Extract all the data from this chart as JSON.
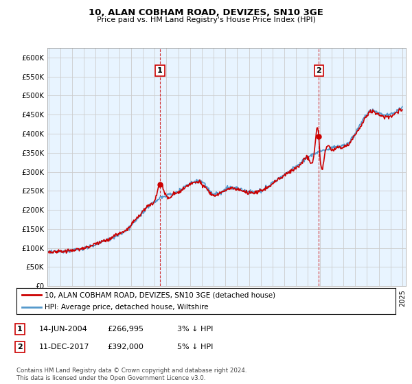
{
  "title": "10, ALAN COBHAM ROAD, DEVIZES, SN10 3GE",
  "subtitle": "Price paid vs. HM Land Registry's House Price Index (HPI)",
  "ylabel_ticks": [
    "£0",
    "£50K",
    "£100K",
    "£150K",
    "£200K",
    "£250K",
    "£300K",
    "£350K",
    "£400K",
    "£450K",
    "£500K",
    "£550K",
    "£600K"
  ],
  "ytick_values": [
    0,
    50000,
    100000,
    150000,
    200000,
    250000,
    300000,
    350000,
    400000,
    450000,
    500000,
    550000,
    600000
  ],
  "ylim": [
    0,
    625000
  ],
  "xlim_start": 1994.9,
  "xlim_end": 2025.3,
  "sale1_x": 2004.45,
  "sale1_y": 266995,
  "sale1_label": "1",
  "sale2_x": 2017.92,
  "sale2_y": 392000,
  "sale2_label": "2",
  "line_color_red": "#cc0000",
  "line_color_blue": "#5599cc",
  "fill_color_blue": "#ddeeff",
  "grid_color": "#cccccc",
  "background_color": "#ffffff",
  "legend_entry1": "10, ALAN COBHAM ROAD, DEVIZES, SN10 3GE (detached house)",
  "legend_entry2": "HPI: Average price, detached house, Wiltshire",
  "table_row1": [
    "1",
    "14-JUN-2004",
    "£266,995",
    "3% ↓ HPI"
  ],
  "table_row2": [
    "2",
    "11-DEC-2017",
    "£392,000",
    "5% ↓ HPI"
  ],
  "footnote": "Contains HM Land Registry data © Crown copyright and database right 2024.\nThis data is licensed under the Open Government Licence v3.0."
}
